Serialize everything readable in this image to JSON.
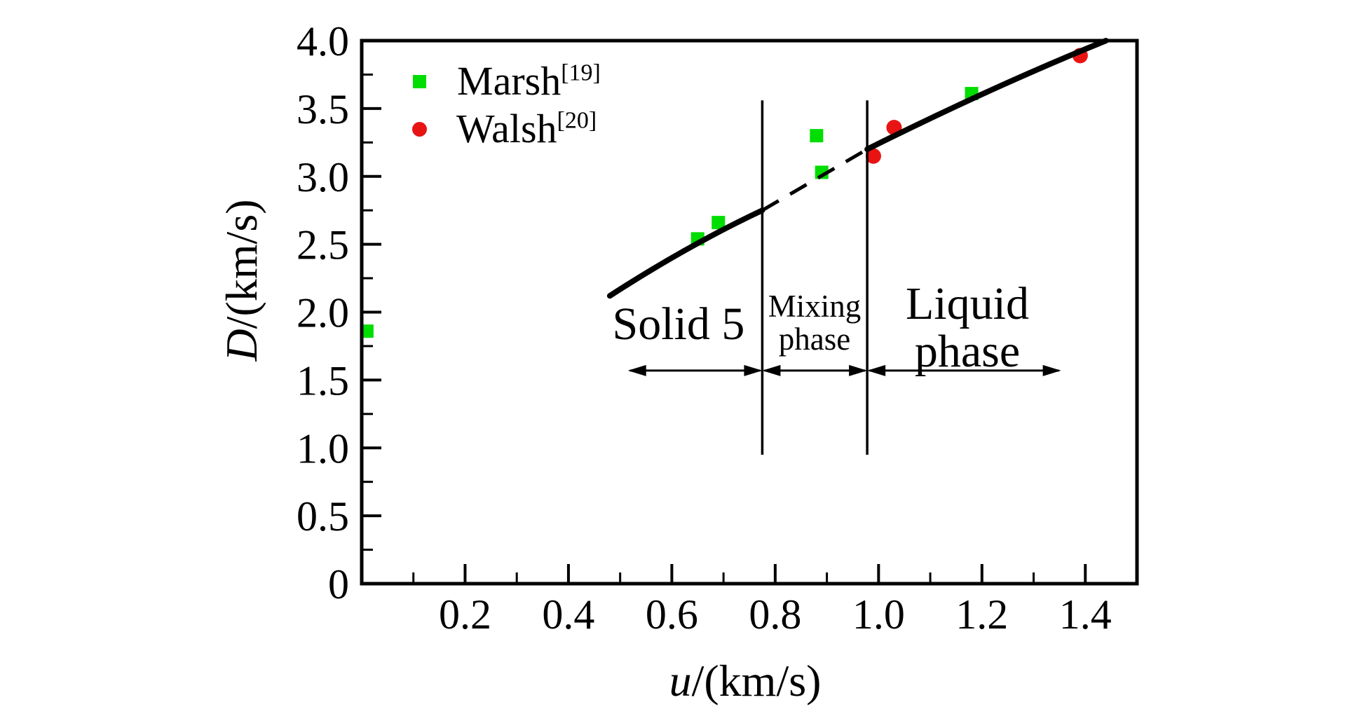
{
  "figure": {
    "background": "#ffffff",
    "axis_color": "#000000",
    "curve_color": "#000000"
  },
  "legend": {
    "items": [
      {
        "label": "Marsh",
        "sup": "[19]",
        "marker": "square",
        "color": "#00dd00"
      },
      {
        "label": "Walsh",
        "sup": "[20]",
        "marker": "circle",
        "color": "#e81414"
      }
    ]
  },
  "axes": {
    "x_label": {
      "var": "u",
      "rest": "/(km/s)"
    },
    "y_label": {
      "var": "D",
      "rest": "/(km/s)"
    },
    "x_range": [
      0,
      1.5
    ],
    "y_range": [
      0,
      4.0
    ],
    "x_ticks": [
      {
        "v": 0.2,
        "label": "0.2"
      },
      {
        "v": 0.4,
        "label": "0.4"
      },
      {
        "v": 0.6,
        "label": "0.6"
      },
      {
        "v": 0.8,
        "label": "0.8"
      },
      {
        "v": 1.0,
        "label": "1.0"
      },
      {
        "v": 1.2,
        "label": "1.2"
      },
      {
        "v": 1.4,
        "label": "1.4"
      }
    ],
    "y_ticks": [
      {
        "v": 0,
        "label": "0"
      },
      {
        "v": 0.5,
        "label": "0.5"
      },
      {
        "v": 1.0,
        "label": "1.0"
      },
      {
        "v": 1.5,
        "label": "1.5"
      },
      {
        "v": 2.0,
        "label": "2.0"
      },
      {
        "v": 2.5,
        "label": "2.5"
      },
      {
        "v": 3.0,
        "label": "3.0"
      },
      {
        "v": 3.5,
        "label": "3.5"
      },
      {
        "v": 4.0,
        "label": "4.0"
      }
    ],
    "x_minor_step": 0.1,
    "y_minor_step": 0.25
  },
  "regions": {
    "solid": {
      "line1": "Solid 5"
    },
    "mixing": {
      "line1": "Mixing",
      "line2": "phase"
    },
    "liquid": {
      "line1": "Liquid",
      "line2": "phase"
    }
  },
  "chart_data": {
    "type": "scatter",
    "title": "",
    "xlabel": "u/(km/s)",
    "ylabel": "D/(km/s)",
    "xlim": [
      0,
      1.5
    ],
    "ylim": [
      0,
      4.0
    ],
    "grid": false,
    "legend_position": "top-left",
    "series": [
      {
        "name": "Marsh",
        "ref": "[19]",
        "marker": "square",
        "color": "#00dd00",
        "points": [
          [
            0.01,
            1.86
          ],
          [
            0.65,
            2.54
          ],
          [
            0.69,
            2.66
          ],
          [
            0.88,
            3.3
          ],
          [
            0.89,
            3.03
          ],
          [
            1.18,
            3.61
          ]
        ]
      },
      {
        "name": "Walsh",
        "ref": "[20]",
        "marker": "circle",
        "color": "#e81414",
        "points": [
          [
            0.99,
            3.15
          ],
          [
            1.03,
            3.36
          ],
          [
            1.39,
            3.89
          ]
        ]
      }
    ],
    "curve": {
      "solid_segment_1": {
        "style": "solid",
        "from": [
          0.48,
          2.12
        ],
        "control": [
          0.63,
          2.49
        ],
        "to": [
          0.775,
          2.75
        ]
      },
      "mixed_segment": {
        "style": "dashed",
        "from": [
          0.775,
          2.75
        ],
        "to": [
          0.978,
          3.2
        ]
      },
      "solid_segment_2": {
        "style": "solid",
        "from": [
          0.978,
          3.2
        ],
        "control": [
          1.22,
          3.66
        ],
        "to": [
          1.44,
          4.0
        ]
      }
    },
    "phase_boundaries": {
      "u_values": [
        0.775,
        0.978
      ],
      "d_extent": [
        0.95,
        3.56
      ]
    },
    "region_arrows": {
      "d_level": 1.57,
      "segments": [
        [
          0.515,
          0.775
        ],
        [
          0.775,
          0.978
        ],
        [
          0.978,
          1.353
        ]
      ]
    },
    "region_labels": [
      {
        "text": "Solid 5",
        "u_center": 0.615
      },
      {
        "text": "Mixing phase",
        "u_center": 0.873
      },
      {
        "text": "Liquid phase",
        "u_center": 1.17
      }
    ]
  }
}
